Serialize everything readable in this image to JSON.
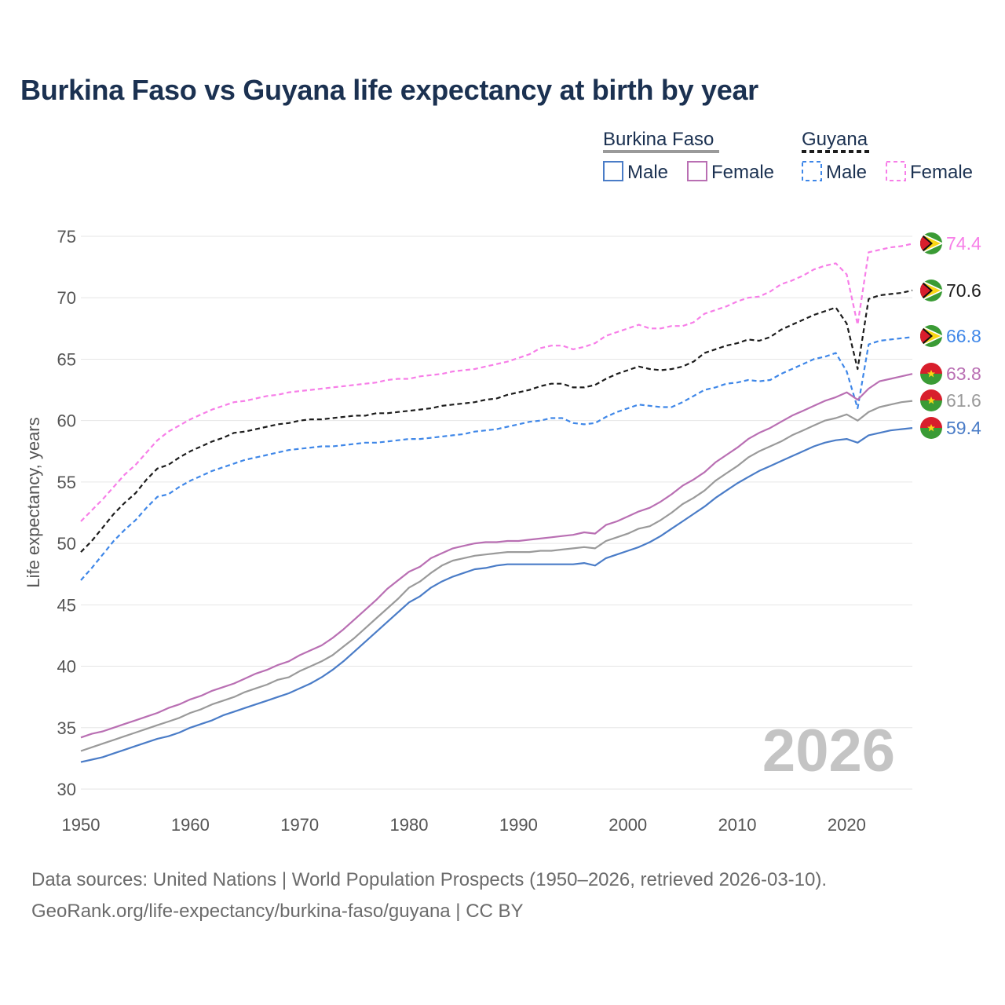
{
  "title": "Burkina Faso vs Guyana life expectancy at birth by year",
  "source_line1": "Data sources: United Nations | World Population Prospects (1950–2026, retrieved 2026-03-10).",
  "source_line2": "GeoRank.org/life-expectancy/burkina-faso/guyana | CC BY",
  "watermark_year": "2026",
  "legend": {
    "group1": "Burkina Faso",
    "group2": "Guyana",
    "male": "Male",
    "female": "Female"
  },
  "chart_data": {
    "type": "line",
    "ylabel": "Life expectancy, years",
    "xlabel": "",
    "xlim": [
      1950,
      2026
    ],
    "ylim": [
      30,
      75
    ],
    "x_ticks": [
      1950,
      1960,
      1970,
      1980,
      1990,
      2000,
      2010,
      2020
    ],
    "y_ticks": [
      30,
      35,
      40,
      45,
      50,
      55,
      60,
      65,
      70,
      75
    ],
    "x": [
      1950,
      1951,
      1952,
      1953,
      1954,
      1955,
      1956,
      1957,
      1958,
      1959,
      1960,
      1961,
      1962,
      1963,
      1964,
      1965,
      1966,
      1967,
      1968,
      1969,
      1970,
      1971,
      1972,
      1973,
      1974,
      1975,
      1976,
      1977,
      1978,
      1979,
      1980,
      1981,
      1982,
      1983,
      1984,
      1985,
      1986,
      1987,
      1988,
      1989,
      1990,
      1991,
      1992,
      1993,
      1994,
      1995,
      1996,
      1997,
      1998,
      1999,
      2000,
      2001,
      2002,
      2003,
      2004,
      2005,
      2006,
      2007,
      2008,
      2009,
      2010,
      2011,
      2012,
      2013,
      2014,
      2015,
      2016,
      2017,
      2018,
      2019,
      2020,
      2021,
      2022,
      2023,
      2024,
      2025,
      2026
    ],
    "series": [
      {
        "name": "Guyana Female",
        "country": "Guyana",
        "sex": "Female",
        "color": "#f77ee8",
        "dashed": true,
        "end_label": "74.4",
        "values": [
          51.8,
          52.7,
          53.6,
          54.6,
          55.6,
          56.4,
          57.4,
          58.4,
          59.1,
          59.6,
          60.1,
          60.5,
          60.9,
          61.2,
          61.5,
          61.6,
          61.8,
          62.0,
          62.1,
          62.3,
          62.4,
          62.5,
          62.6,
          62.7,
          62.8,
          62.9,
          63.0,
          63.1,
          63.3,
          63.4,
          63.4,
          63.6,
          63.7,
          63.8,
          64.0,
          64.1,
          64.2,
          64.4,
          64.6,
          64.8,
          65.1,
          65.4,
          65.9,
          66.1,
          66.1,
          65.8,
          66.0,
          66.3,
          66.9,
          67.2,
          67.5,
          67.8,
          67.5,
          67.5,
          67.7,
          67.7,
          68.0,
          68.7,
          69.0,
          69.3,
          69.7,
          70.0,
          70.1,
          70.5,
          71.1,
          71.4,
          71.8,
          72.3,
          72.6,
          72.8,
          71.9,
          67.8,
          73.7,
          73.9,
          74.1,
          74.2,
          74.4
        ]
      },
      {
        "name": "Guyana Total",
        "country": "Guyana",
        "sex": "Total",
        "color": "#1c1c1c",
        "dashed": true,
        "end_label": "70.6",
        "values": [
          49.3,
          50.2,
          51.3,
          52.4,
          53.3,
          54.1,
          55.2,
          56.1,
          56.4,
          57.0,
          57.5,
          57.9,
          58.3,
          58.6,
          59.0,
          59.1,
          59.3,
          59.5,
          59.7,
          59.8,
          60.0,
          60.1,
          60.1,
          60.2,
          60.3,
          60.4,
          60.4,
          60.6,
          60.6,
          60.7,
          60.8,
          60.9,
          61.0,
          61.2,
          61.3,
          61.4,
          61.5,
          61.7,
          61.8,
          62.1,
          62.3,
          62.5,
          62.8,
          63.0,
          63.0,
          62.7,
          62.7,
          62.9,
          63.4,
          63.8,
          64.1,
          64.4,
          64.2,
          64.1,
          64.2,
          64.4,
          64.8,
          65.5,
          65.8,
          66.1,
          66.3,
          66.6,
          66.5,
          66.8,
          67.4,
          67.8,
          68.2,
          68.6,
          68.9,
          69.2,
          67.9,
          64.2,
          69.9,
          70.2,
          70.3,
          70.4,
          70.6
        ]
      },
      {
        "name": "Guyana Male",
        "country": "Guyana",
        "sex": "Male",
        "color": "#3f87e8",
        "dashed": true,
        "end_label": "66.8",
        "values": [
          47.0,
          48.0,
          49.1,
          50.2,
          51.1,
          51.9,
          52.9,
          53.8,
          54.0,
          54.6,
          55.1,
          55.5,
          55.9,
          56.2,
          56.5,
          56.8,
          57.0,
          57.2,
          57.4,
          57.6,
          57.7,
          57.8,
          57.9,
          57.9,
          58.0,
          58.1,
          58.2,
          58.2,
          58.3,
          58.4,
          58.5,
          58.5,
          58.6,
          58.7,
          58.8,
          58.9,
          59.1,
          59.2,
          59.3,
          59.5,
          59.7,
          59.9,
          60.0,
          60.2,
          60.2,
          59.8,
          59.7,
          59.8,
          60.3,
          60.7,
          61.0,
          61.3,
          61.2,
          61.1,
          61.1,
          61.5,
          62.0,
          62.5,
          62.7,
          63.0,
          63.1,
          63.3,
          63.2,
          63.3,
          63.8,
          64.2,
          64.6,
          65.0,
          65.2,
          65.5,
          64.0,
          61.0,
          66.2,
          66.5,
          66.6,
          66.7,
          66.8
        ]
      },
      {
        "name": "Burkina Faso Female",
        "country": "Burkina Faso",
        "sex": "Female",
        "color": "#b96fb3",
        "dashed": false,
        "end_label": "63.8",
        "values": [
          34.2,
          34.5,
          34.7,
          35.0,
          35.3,
          35.6,
          35.9,
          36.2,
          36.6,
          36.9,
          37.3,
          37.6,
          38.0,
          38.3,
          38.6,
          39.0,
          39.4,
          39.7,
          40.1,
          40.4,
          40.9,
          41.3,
          41.7,
          42.3,
          43.0,
          43.8,
          44.6,
          45.4,
          46.3,
          47.0,
          47.7,
          48.1,
          48.8,
          49.2,
          49.6,
          49.8,
          50.0,
          50.1,
          50.1,
          50.2,
          50.2,
          50.3,
          50.4,
          50.5,
          50.6,
          50.7,
          50.9,
          50.8,
          51.5,
          51.8,
          52.2,
          52.6,
          52.9,
          53.4,
          54.0,
          54.7,
          55.2,
          55.8,
          56.6,
          57.2,
          57.8,
          58.5,
          59.0,
          59.4,
          59.9,
          60.4,
          60.8,
          61.2,
          61.6,
          61.9,
          62.3,
          61.7,
          62.6,
          63.2,
          63.4,
          63.6,
          63.8
        ]
      },
      {
        "name": "Burkina Faso Total",
        "country": "Burkina Faso",
        "sex": "Total",
        "color": "#9a9a9a",
        "dashed": false,
        "end_label": "61.6",
        "values": [
          33.1,
          33.4,
          33.7,
          34.0,
          34.3,
          34.6,
          34.9,
          35.2,
          35.5,
          35.8,
          36.2,
          36.5,
          36.9,
          37.2,
          37.5,
          37.9,
          38.2,
          38.5,
          38.9,
          39.1,
          39.6,
          40.0,
          40.4,
          40.9,
          41.6,
          42.3,
          43.1,
          43.9,
          44.7,
          45.5,
          46.4,
          46.9,
          47.6,
          48.2,
          48.6,
          48.8,
          49.0,
          49.1,
          49.2,
          49.3,
          49.3,
          49.3,
          49.4,
          49.4,
          49.5,
          49.6,
          49.7,
          49.6,
          50.2,
          50.5,
          50.8,
          51.2,
          51.4,
          51.9,
          52.5,
          53.2,
          53.7,
          54.3,
          55.1,
          55.7,
          56.3,
          57.0,
          57.5,
          57.9,
          58.3,
          58.8,
          59.2,
          59.6,
          60.0,
          60.2,
          60.5,
          60.0,
          60.7,
          61.1,
          61.3,
          61.5,
          61.6
        ]
      },
      {
        "name": "Burkina Faso Male",
        "country": "Burkina Faso",
        "sex": "Male",
        "color": "#4a7cc7",
        "dashed": false,
        "end_label": "59.4",
        "values": [
          32.2,
          32.4,
          32.6,
          32.9,
          33.2,
          33.5,
          33.8,
          34.1,
          34.3,
          34.6,
          35.0,
          35.3,
          35.6,
          36.0,
          36.3,
          36.6,
          36.9,
          37.2,
          37.5,
          37.8,
          38.2,
          38.6,
          39.1,
          39.7,
          40.4,
          41.2,
          42.0,
          42.8,
          43.6,
          44.4,
          45.2,
          45.7,
          46.4,
          46.9,
          47.3,
          47.6,
          47.9,
          48.0,
          48.2,
          48.3,
          48.3,
          48.3,
          48.3,
          48.3,
          48.3,
          48.3,
          48.4,
          48.2,
          48.8,
          49.1,
          49.4,
          49.7,
          50.1,
          50.6,
          51.2,
          51.8,
          52.4,
          53.0,
          53.7,
          54.3,
          54.9,
          55.4,
          55.9,
          56.3,
          56.7,
          57.1,
          57.5,
          57.9,
          58.2,
          58.4,
          58.5,
          58.2,
          58.8,
          59.0,
          59.2,
          59.3,
          59.4
        ]
      }
    ]
  }
}
